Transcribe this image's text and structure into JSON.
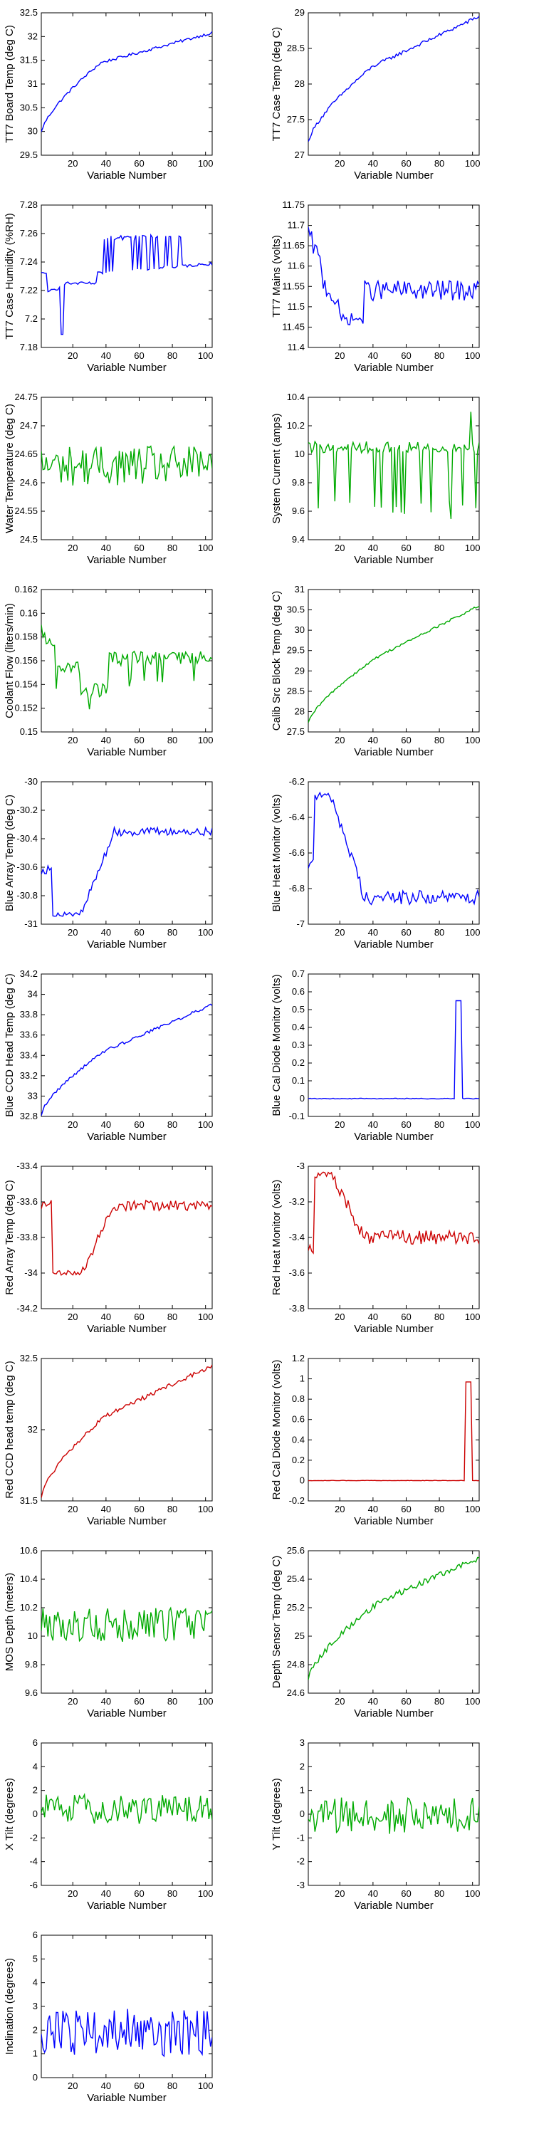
{
  "chart_data": [
    {
      "type": "line",
      "xlabel": "Variable Number",
      "ylabel": "TT7 Board Temp (deg C)",
      "xlim": [
        1,
        104
      ],
      "ylim": [
        29.5,
        32.5
      ],
      "xticks": [
        20,
        40,
        60,
        80,
        100
      ],
      "yticks": [
        29.5,
        30,
        30.5,
        31,
        31.5,
        32,
        32.5
      ],
      "color": "#0000ff",
      "shape": "rise",
      "noise": 0.03,
      "params": {
        "y0": 29.98,
        "y1": 32.08,
        "knee": 37,
        "kv": 31.45
      }
    },
    {
      "type": "line",
      "xlabel": "Variable Number",
      "ylabel": "TT7 Case Temp (deg C)",
      "xlim": [
        1,
        104
      ],
      "ylim": [
        27,
        29
      ],
      "xticks": [
        20,
        40,
        60,
        80,
        100
      ],
      "yticks": [
        27,
        27.5,
        28,
        28.5,
        29
      ],
      "color": "#0000ff",
      "shape": "rise",
      "noise": 0.025,
      "params": {
        "y0": 27.18,
        "y1": 28.95,
        "knee": 40,
        "kv": 28.25
      }
    },
    {
      "type": "line",
      "xlabel": "Variable Number",
      "ylabel": "TT7 Case Humidity (%RH)",
      "xlim": [
        1,
        104
      ],
      "ylim": [
        7.18,
        7.28
      ],
      "xticks": [
        20,
        40,
        60,
        80,
        100
      ],
      "yticks": [
        7.18,
        7.2,
        7.22,
        7.24,
        7.26,
        7.28
      ],
      "color": "#0000ff",
      "shape": "humidity",
      "noise": 0.001,
      "params": {}
    },
    {
      "type": "line",
      "xlabel": "Variable Number",
      "ylabel": "TT7 Mains  (volts)",
      "xlim": [
        1,
        104
      ],
      "ylim": [
        11.4,
        11.75
      ],
      "xticks": [
        20,
        40,
        60,
        80,
        100
      ],
      "yticks": [
        11.4,
        11.45,
        11.5,
        11.55,
        11.6,
        11.65,
        11.7,
        11.75
      ],
      "color": "#0000ff",
      "shape": "mains",
      "noise": 0.025,
      "params": {}
    },
    {
      "type": "line",
      "xlabel": "Variable Number",
      "ylabel": "Water Temperature (deg C)",
      "xlim": [
        1,
        104
      ],
      "ylim": [
        24.5,
        24.75
      ],
      "xticks": [
        20,
        40,
        60,
        80,
        100
      ],
      "yticks": [
        24.5,
        24.55,
        24.6,
        24.65,
        24.7,
        24.75
      ],
      "color": "#00aa00",
      "shape": "noisy",
      "noise": 0.035,
      "params": {
        "base": 24.63
      }
    },
    {
      "type": "line",
      "xlabel": "Variable Number",
      "ylabel": "System Current (amps)",
      "xlim": [
        1,
        104
      ],
      "ylim": [
        9.4,
        10.4
      ],
      "xticks": [
        20,
        40,
        60,
        80,
        100
      ],
      "yticks": [
        9.4,
        9.6,
        9.8,
        10,
        10.2,
        10.4
      ],
      "color": "#00aa00",
      "shape": "spiky-down",
      "noise": 0.04,
      "params": {
        "base": 10.05,
        "low": 9.62
      }
    },
    {
      "type": "line",
      "xlabel": "Variable Number",
      "ylabel": "Coolant Flow (liters/min)",
      "xlim": [
        1,
        104
      ],
      "ylim": [
        0.15,
        0.162
      ],
      "xticks": [
        20,
        40,
        60,
        80,
        100
      ],
      "yticks": [
        0.15,
        0.152,
        0.154,
        0.156,
        0.158,
        0.16,
        0.162
      ],
      "color": "#00aa00",
      "shape": "coolant",
      "noise": 0.0006,
      "params": {}
    },
    {
      "type": "line",
      "xlabel": "Variable Number",
      "ylabel": "Calib Src Block Temp (deg C)",
      "xlim": [
        1,
        104
      ],
      "ylim": [
        27.5,
        31
      ],
      "xticks": [
        20,
        40,
        60,
        80,
        100
      ],
      "yticks": [
        27.5,
        28,
        28.5,
        29,
        29.5,
        30,
        30.5,
        31
      ],
      "color": "#00aa00",
      "shape": "rise",
      "noise": 0.03,
      "params": {
        "y0": 27.7,
        "y1": 30.6,
        "knee": 45,
        "kv": 29.4
      }
    },
    {
      "type": "line",
      "xlabel": "Variable Number",
      "ylabel": "Blue Array Temp (deg C)",
      "xlim": [
        1,
        104
      ],
      "ylim": [
        -31,
        -30
      ],
      "xticks": [
        20,
        40,
        60,
        80,
        100
      ],
      "yticks": [
        -31,
        -30.8,
        -30.6,
        -30.4,
        -30.2,
        -30
      ],
      "color": "#0000ff",
      "shape": "dip-rise",
      "noise": 0.03,
      "params": {
        "a": -30.62,
        "b": -30.93,
        "c": -30.35
      }
    },
    {
      "type": "line",
      "xlabel": "Variable Number",
      "ylabel": "Blue Heat Monitor (volts)",
      "xlim": [
        1,
        104
      ],
      "ylim": [
        -7,
        -6.2
      ],
      "xticks": [
        20,
        40,
        60,
        80,
        100
      ],
      "yticks": [
        -7,
        -6.8,
        -6.6,
        -6.4,
        -6.2
      ],
      "color": "#0000ff",
      "shape": "heat",
      "noise": 0.04,
      "params": {
        "a": -6.65,
        "p": -6.28,
        "b": -6.85
      }
    },
    {
      "type": "line",
      "xlabel": "Variable Number",
      "ylabel": "Blue CCD Head Temp (deg C)",
      "xlim": [
        1,
        104
      ],
      "ylim": [
        32.8,
        34.2
      ],
      "xticks": [
        20,
        40,
        60,
        80,
        100
      ],
      "yticks": [
        32.8,
        33,
        33.2,
        33.4,
        33.6,
        33.8,
        34,
        34.2
      ],
      "color": "#0000ff",
      "shape": "rise",
      "noise": 0.015,
      "params": {
        "y0": 32.82,
        "y1": 33.9,
        "knee": 40,
        "kv": 33.45
      }
    },
    {
      "type": "line",
      "xlabel": "Variable Number",
      "ylabel": "Blue Cal Diode Monitor (volts)",
      "xlim": [
        1,
        104
      ],
      "ylim": [
        -0.1,
        0.7
      ],
      "xticks": [
        20,
        40,
        60,
        80,
        100
      ],
      "yticks": [
        -0.1,
        0,
        0.1,
        0.2,
        0.3,
        0.4,
        0.5,
        0.6,
        0.7
      ],
      "color": "#0000ff",
      "shape": "pulse",
      "noise": 0.002,
      "params": {
        "base": 0,
        "lo": 90,
        "hi": 93,
        "peak": 0.55
      }
    },
    {
      "type": "line",
      "xlabel": "Variable Number",
      "ylabel": "Red Array Temp (deg C)",
      "xlim": [
        1,
        104
      ],
      "ylim": [
        -34.2,
        -33.4
      ],
      "xticks": [
        20,
        40,
        60,
        80,
        100
      ],
      "yticks": [
        -34.2,
        -34,
        -33.8,
        -33.6,
        -33.4
      ],
      "color": "#cc0000",
      "shape": "dip-rise",
      "noise": 0.03,
      "params": {
        "a": -33.62,
        "b": -34.0,
        "c": -33.62
      }
    },
    {
      "type": "line",
      "xlabel": "Variable Number",
      "ylabel": "Red Heat Monitor (volts)",
      "xlim": [
        1,
        104
      ],
      "ylim": [
        -3.8,
        -3
      ],
      "xticks": [
        20,
        40,
        60,
        80,
        100
      ],
      "yticks": [
        -3.8,
        -3.6,
        -3.4,
        -3.2,
        -3
      ],
      "color": "#cc0000",
      "shape": "heat",
      "noise": 0.04,
      "params": {
        "a": -3.45,
        "p": -3.05,
        "b": -3.4
      }
    },
    {
      "type": "line",
      "xlabel": "Variable Number",
      "ylabel": "Red CCD head temp (deg C)",
      "xlim": [
        1,
        104
      ],
      "ylim": [
        31.5,
        32.5
      ],
      "xticks": [
        20,
        40,
        60,
        80,
        100
      ],
      "yticks": [
        31.5,
        32,
        32.5
      ],
      "color": "#cc0000",
      "shape": "rise",
      "noise": 0.015,
      "params": {
        "y0": 31.53,
        "y1": 32.45,
        "knee": 40,
        "kv": 32.1
      }
    },
    {
      "type": "line",
      "xlabel": "Variable Number",
      "ylabel": "Red Cal Diode Monitor (volts)",
      "xlim": [
        1,
        104
      ],
      "ylim": [
        -0.2,
        1.2
      ],
      "xticks": [
        20,
        40,
        60,
        80,
        100
      ],
      "yticks": [
        -0.2,
        0,
        0.2,
        0.4,
        0.6,
        0.8,
        1,
        1.2
      ],
      "color": "#cc0000",
      "shape": "pulse",
      "noise": 0.002,
      "params": {
        "base": 0,
        "lo": 96,
        "hi": 99,
        "peak": 0.97
      }
    },
    {
      "type": "line",
      "xlabel": "Variable Number",
      "ylabel": "MOS Depth  (meters)",
      "xlim": [
        1,
        104
      ],
      "ylim": [
        9.6,
        10.6
      ],
      "xticks": [
        20,
        40,
        60,
        80,
        100
      ],
      "yticks": [
        9.6,
        9.8,
        10,
        10.2,
        10.4,
        10.6
      ],
      "color": "#00aa00",
      "shape": "noisy",
      "noise": 0.12,
      "params": {
        "base": 10.08
      }
    },
    {
      "type": "line",
      "xlabel": "Variable Number",
      "ylabel": "Depth Sensor Temp (deg C)",
      "xlim": [
        1,
        104
      ],
      "ylim": [
        24.6,
        25.6
      ],
      "xticks": [
        20,
        40,
        60,
        80,
        100
      ],
      "yticks": [
        24.6,
        24.8,
        25,
        25.2,
        25.4,
        25.6
      ],
      "color": "#00aa00",
      "shape": "rise",
      "noise": 0.02,
      "params": {
        "y0": 24.7,
        "y1": 25.55,
        "knee": 45,
        "kv": 25.25
      }
    },
    {
      "type": "line",
      "xlabel": "Variable Number",
      "ylabel": "X Tilt  (degrees)",
      "xlim": [
        1,
        104
      ],
      "ylim": [
        -6,
        6
      ],
      "xticks": [
        20,
        40,
        60,
        80,
        100
      ],
      "yticks": [
        -6,
        -4,
        -2,
        0,
        2,
        4,
        6
      ],
      "color": "#00aa00",
      "shape": "noisy",
      "noise": 1.3,
      "params": {
        "base": 0.4
      }
    },
    {
      "type": "line",
      "xlabel": "Variable Number",
      "ylabel": "Y Tilt  (degrees)",
      "xlim": [
        1,
        104
      ],
      "ylim": [
        -3,
        3
      ],
      "xticks": [
        20,
        40,
        60,
        80,
        100
      ],
      "yticks": [
        -3,
        -2,
        -1,
        0,
        1,
        2,
        3
      ],
      "color": "#00aa00",
      "shape": "noisy",
      "noise": 0.8,
      "params": {
        "base": -0.1
      }
    },
    {
      "type": "line",
      "xlabel": "Variable Number",
      "ylabel": "Inclination  (degrees)",
      "xlim": [
        1,
        104
      ],
      "ylim": [
        0,
        6
      ],
      "xticks": [
        20,
        40,
        60,
        80,
        100
      ],
      "yticks": [
        0,
        1,
        2,
        3,
        4,
        5,
        6
      ],
      "color": "#0000ff",
      "shape": "positive-noisy",
      "noise": 1.0,
      "params": {
        "base": 1.6
      }
    }
  ]
}
